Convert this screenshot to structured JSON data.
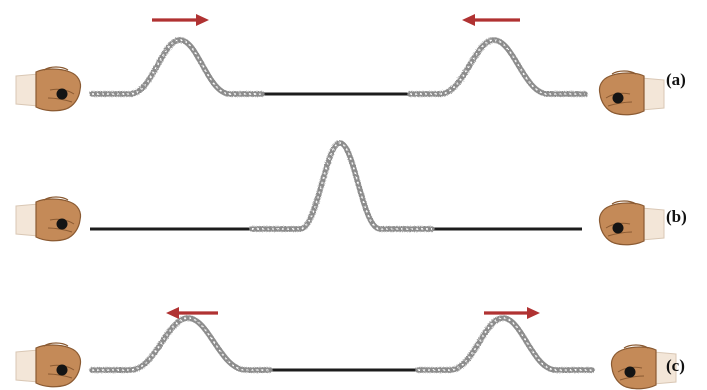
{
  "panels": [
    {
      "label": "(a)",
      "arrows": [
        "right",
        "left"
      ]
    },
    {
      "label": "(b)",
      "arrows": []
    },
    {
      "label": "(c)",
      "arrows": [
        "left",
        "right"
      ]
    }
  ],
  "colors": {
    "arrow": "#b03232",
    "rope": "#1c1c1c",
    "pulse": "#8c8c8c",
    "skin": "#c48a58",
    "skin_shadow": "#8a5a32",
    "knob": "#141414"
  },
  "icons": {
    "hand": "hand-gripping-rope-icon",
    "arrow": "motion-arrow-icon"
  }
}
